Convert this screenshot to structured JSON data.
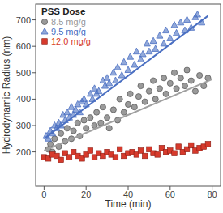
{
  "chart_data": {
    "type": "scatter",
    "x_label": "Time (min)",
    "y_label": "Hydrodynamic Radius (nm)",
    "legend_title": "PSS Dose",
    "legend": "upper left",
    "xlim": [
      -4,
      84
    ],
    "xticks": [
      0,
      20,
      40,
      60,
      80
    ],
    "ylim": [
      70,
      760
    ],
    "yticks": [
      200,
      300,
      400,
      500,
      600,
      700
    ],
    "grid": false,
    "series": [
      {
        "name": "8.5 mg/g",
        "color": "#9a9a9a",
        "marker": "circle",
        "x": [
          2,
          3,
          4,
          5,
          7,
          8,
          10,
          11,
          13,
          14,
          16,
          17,
          19,
          20,
          22,
          24,
          25,
          27,
          28,
          30,
          31,
          33,
          35,
          36,
          38,
          40,
          41,
          43,
          45,
          46,
          48,
          50,
          52,
          53,
          55,
          57,
          58,
          60,
          62,
          63,
          65,
          67,
          68,
          70,
          72,
          74,
          76,
          78
        ],
        "values": [
          210,
          230,
          200,
          250,
          220,
          270,
          240,
          290,
          250,
          280,
          310,
          260,
          320,
          290,
          330,
          300,
          350,
          310,
          370,
          330,
          290,
          360,
          320,
          400,
          350,
          380,
          420,
          370,
          410,
          450,
          390,
          430,
          470,
          400,
          440,
          480,
          420,
          460,
          500,
          440,
          480,
          450,
          510,
          470,
          430,
          490,
          450,
          480
        ]
      },
      {
        "name": "9.5 mg/g",
        "color": "#4a6fc2",
        "marker": "triangle",
        "x": [
          1,
          2,
          3,
          4,
          5,
          6,
          7,
          8,
          9,
          10,
          11,
          12,
          13,
          14,
          15,
          16,
          17,
          18,
          19,
          20,
          22,
          23,
          24,
          25,
          26,
          28,
          29,
          30,
          31,
          33,
          34,
          35,
          37,
          38,
          40,
          41,
          43,
          44,
          46,
          47,
          49,
          50,
          52,
          53,
          55,
          57,
          58,
          60,
          62,
          63,
          65,
          67,
          68,
          70,
          72,
          73,
          75
        ],
        "values": [
          260,
          250,
          280,
          270,
          300,
          290,
          310,
          300,
          340,
          320,
          350,
          330,
          370,
          340,
          360,
          380,
          350,
          390,
          400,
          380,
          420,
          400,
          440,
          420,
          430,
          470,
          450,
          480,
          460,
          500,
          470,
          520,
          490,
          540,
          510,
          560,
          530,
          580,
          550,
          570,
          610,
          580,
          620,
          590,
          640,
          610,
          660,
          630,
          680,
          650,
          690,
          660,
          700,
          670,
          710,
          720,
          690
        ]
      },
      {
        "name": "12.0 mg/g",
        "color": "#d63a2c",
        "marker": "square",
        "x": [
          0,
          2,
          4,
          6,
          8,
          10,
          12,
          14,
          16,
          18,
          20,
          22,
          24,
          26,
          28,
          30,
          32,
          34,
          36,
          38,
          40,
          42,
          44,
          46,
          48,
          50,
          52,
          54,
          56,
          58,
          60,
          62,
          64,
          66,
          68,
          70,
          72,
          74,
          76,
          78
        ],
        "values": [
          180,
          175,
          190,
          185,
          170,
          195,
          180,
          200,
          185,
          175,
          190,
          205,
          180,
          195,
          185,
          200,
          190,
          180,
          210,
          185,
          195,
          200,
          190,
          205,
          185,
          210,
          195,
          190,
          215,
          200,
          205,
          195,
          220,
          200,
          210,
          225,
          205,
          215,
          220,
          230
        ]
      },
      {
        "type": "line",
        "color": "#a0a0a0",
        "line_style": "solid",
        "x": [
          0,
          80
        ],
        "values": [
          205,
          475
        ]
      },
      {
        "type": "line",
        "color": "#4a6fc2",
        "line_style": "solid",
        "x": [
          0,
          78
        ],
        "values": [
          250,
          715
        ]
      }
    ]
  }
}
